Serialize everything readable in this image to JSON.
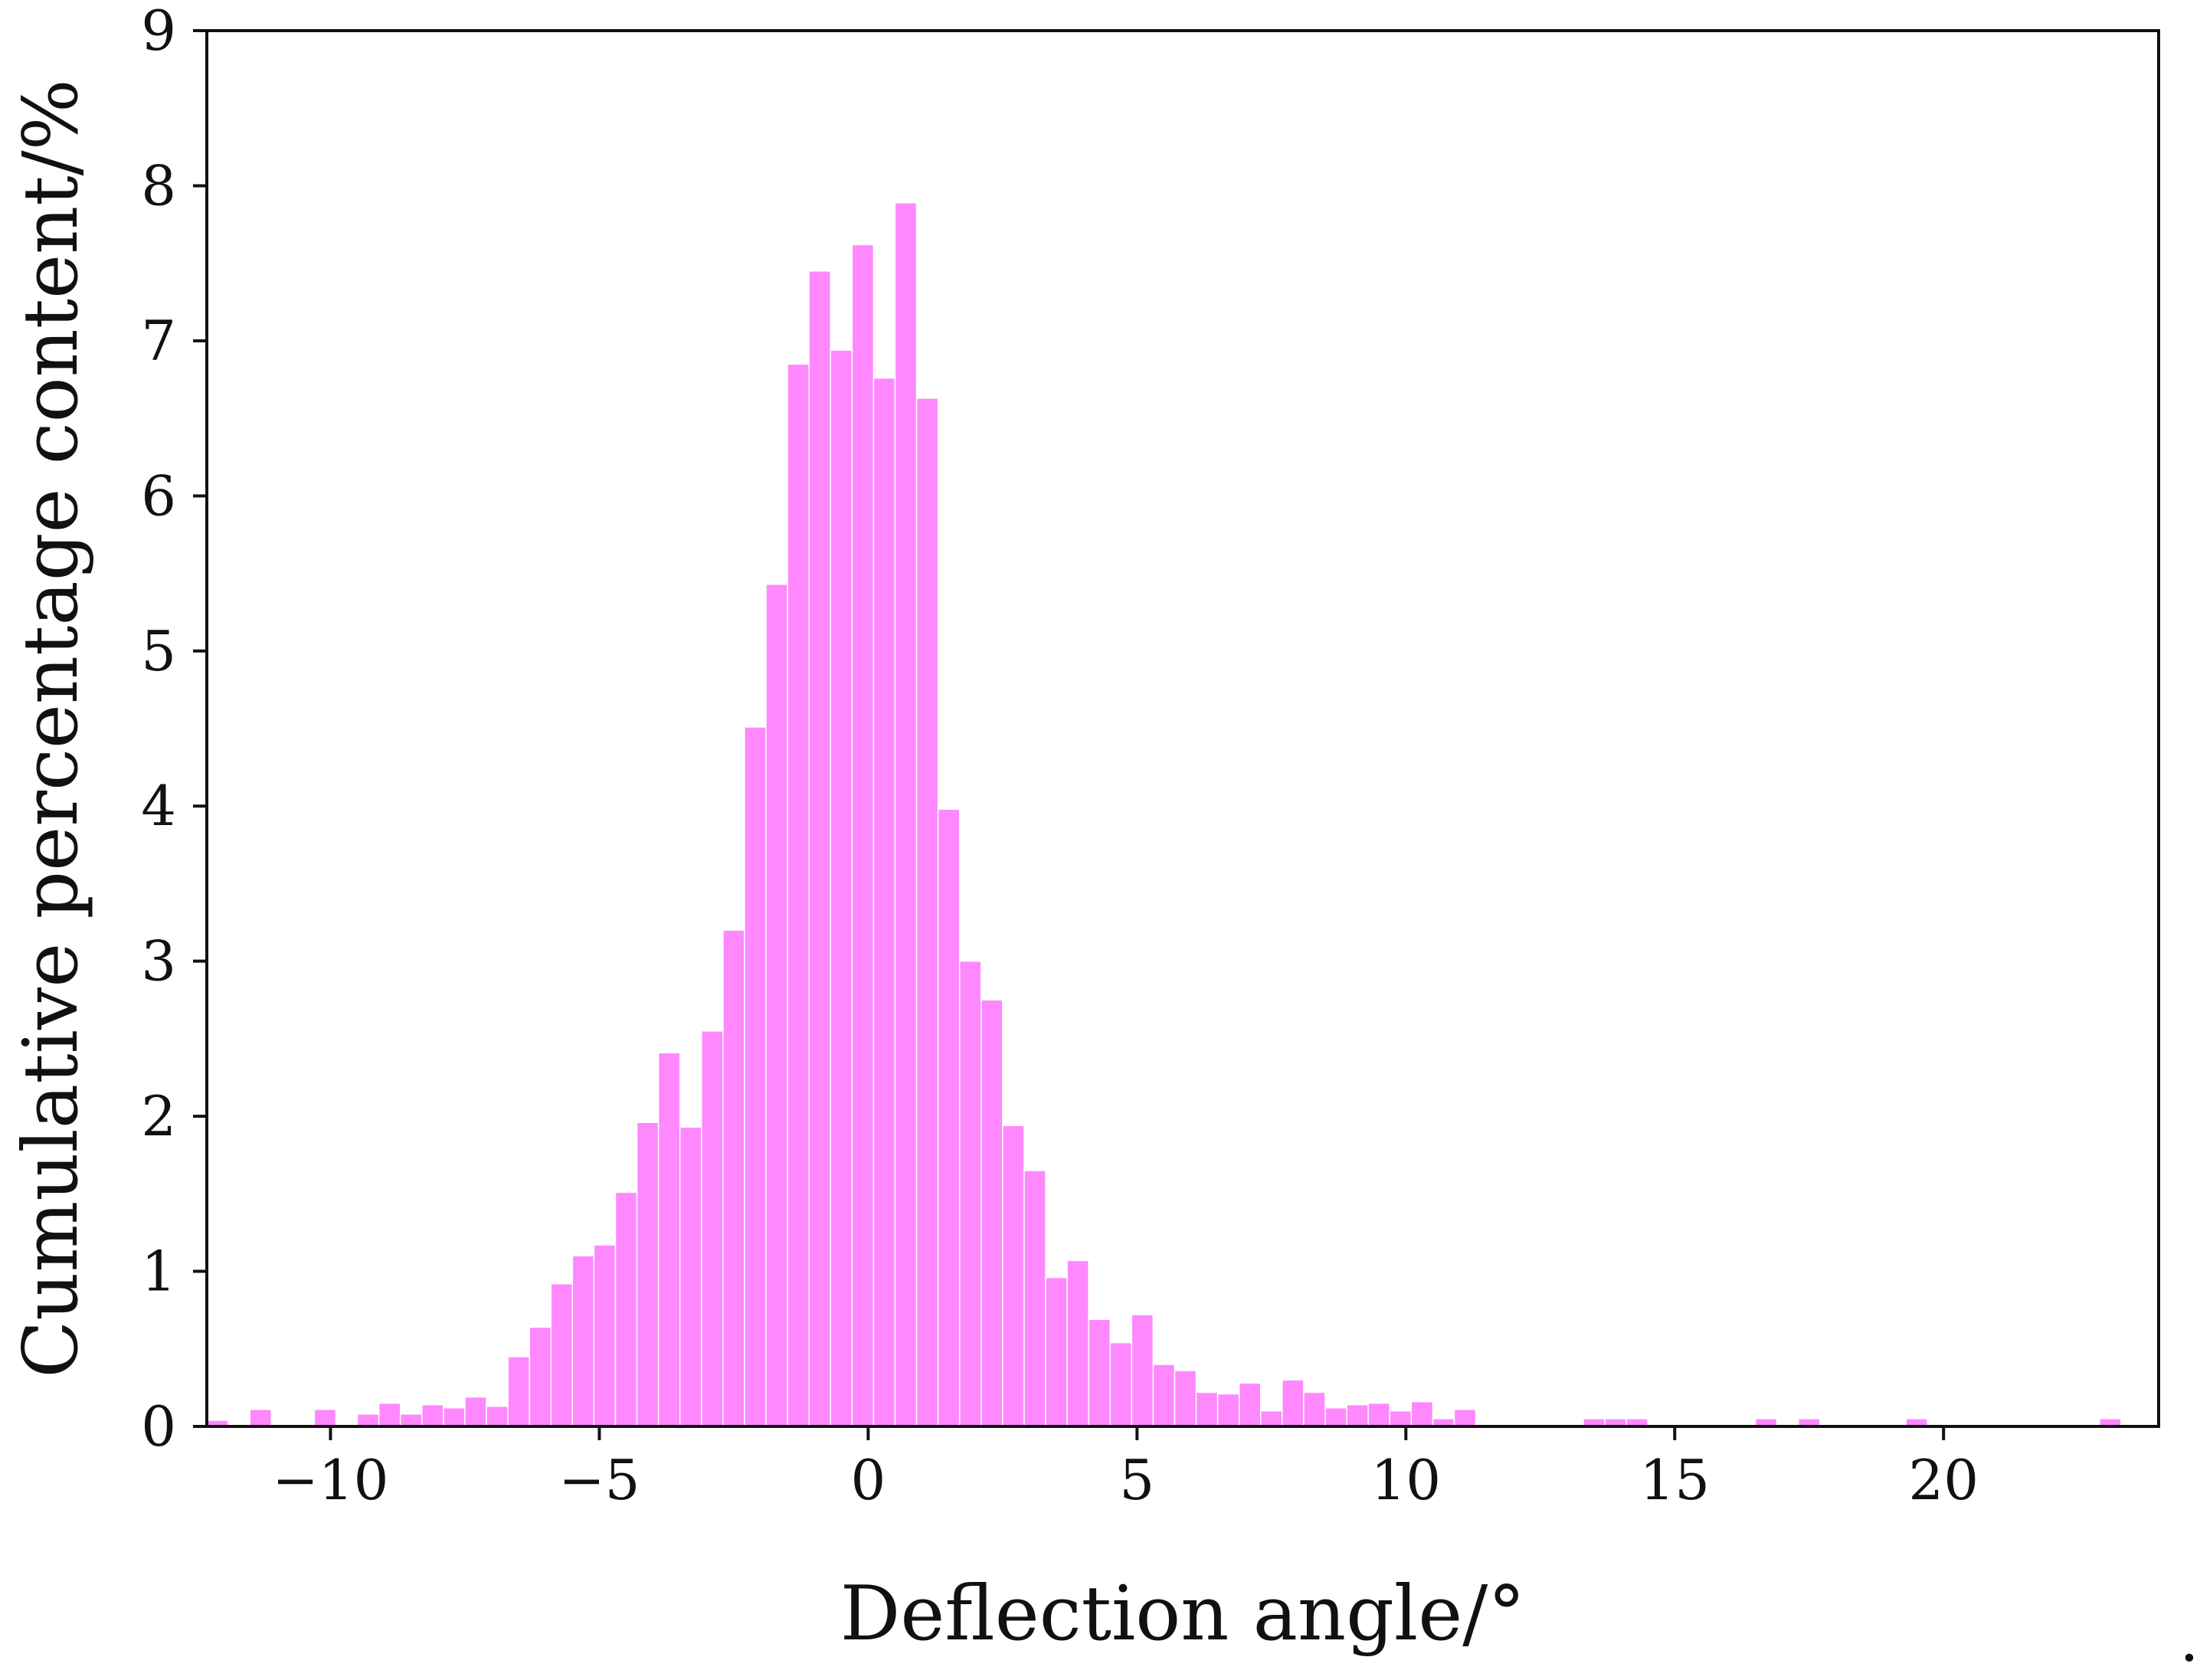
{
  "chart_data": {
    "type": "bar",
    "xlabel": "Deflection angle/°",
    "ylabel": "Cumulative percentage content/%",
    "xlim": [
      -12.3,
      24.0
    ],
    "ylim": [
      0,
      9
    ],
    "xticks": [
      -10,
      -5,
      0,
      5,
      10,
      15,
      20
    ],
    "xtick_labels": [
      "−10",
      "−5",
      "0",
      "5",
      "10",
      "15",
      "20"
    ],
    "yticks": [
      0,
      1,
      2,
      3,
      4,
      5,
      6,
      7,
      8,
      9
    ],
    "ytick_labels": [
      "0",
      "1",
      "2",
      "3",
      "4",
      "5",
      "6",
      "7",
      "8",
      "9"
    ],
    "grid": false,
    "bar_color": "#ff88ff",
    "bin_width": 0.4,
    "x": [
      -12.1,
      -11.3,
      -10.1,
      -9.3,
      -8.9,
      -8.5,
      -8.1,
      -7.7,
      -7.3,
      -6.9,
      -6.5,
      -6.1,
      -5.7,
      -5.3,
      -4.9,
      -4.5,
      -4.1,
      -3.7,
      -3.3,
      -2.9,
      -2.5,
      -2.1,
      -1.7,
      -1.3,
      -0.9,
      -0.5,
      -0.1,
      0.3,
      0.7,
      1.1,
      1.5,
      1.9,
      2.3,
      2.7,
      3.1,
      3.5,
      3.9,
      4.3,
      4.7,
      5.1,
      5.5,
      5.9,
      6.3,
      6.7,
      7.1,
      7.5,
      7.9,
      8.3,
      8.7,
      9.1,
      9.5,
      9.9,
      10.3,
      10.7,
      11.1,
      11.9,
      13.5,
      13.9,
      14.3,
      16.7,
      17.5,
      19.5,
      23.1
    ],
    "values": [
      0.04,
      0.11,
      0.11,
      0.08,
      0.15,
      0.08,
      0.14,
      0.12,
      0.19,
      0.13,
      0.45,
      0.64,
      0.92,
      1.1,
      1.17,
      1.51,
      1.96,
      2.41,
      1.93,
      2.55,
      3.2,
      4.51,
      5.43,
      6.85,
      7.45,
      6.94,
      7.62,
      6.76,
      7.89,
      6.63,
      3.98,
      3.0,
      2.75,
      1.94,
      1.65,
      0.96,
      1.07,
      0.69,
      0.54,
      0.72,
      0.4,
      0.36,
      0.22,
      0.21,
      0.28,
      0.1,
      0.3,
      0.22,
      0.12,
      0.14,
      0.15,
      0.1,
      0.16,
      0.05,
      0.11,
      0.0,
      0.05,
      0.05,
      0.05,
      0.05,
      0.05,
      0.05,
      0.05
    ]
  },
  "footnote_mark": "."
}
